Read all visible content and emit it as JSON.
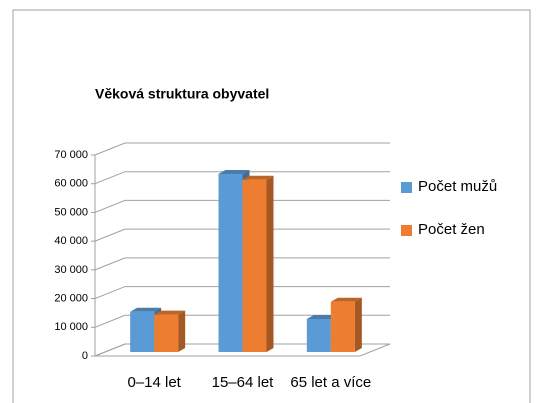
{
  "chart_data": {
    "type": "bar",
    "title": "Věková struktura obyvatel",
    "categories": [
      "0–14 let",
      "15–64 let",
      "65 let a více"
    ],
    "series": [
      {
        "name": "Počet mužů",
        "color": "#5b9bd5",
        "values": [
          14000,
          62000,
          11500
        ]
      },
      {
        "name": "Počet žen",
        "color": "#ed7d31",
        "values": [
          13000,
          60000,
          17500
        ]
      }
    ],
    "ylim": [
      0,
      70000
    ],
    "yticks": [
      0,
      {
        "value": 10000,
        "label": "10 000"
      },
      {
        "value": 20000,
        "label": "20 000"
      },
      {
        "value": 30000,
        "label": "30 000"
      },
      {
        "value": 40000,
        "label": "40 000"
      },
      {
        "value": 50000,
        "label": "50 000"
      },
      {
        "value": 60000,
        "label": "60 000"
      },
      {
        "value": 70000,
        "label": "70 000"
      }
    ],
    "grid": true,
    "legend": "right"
  }
}
